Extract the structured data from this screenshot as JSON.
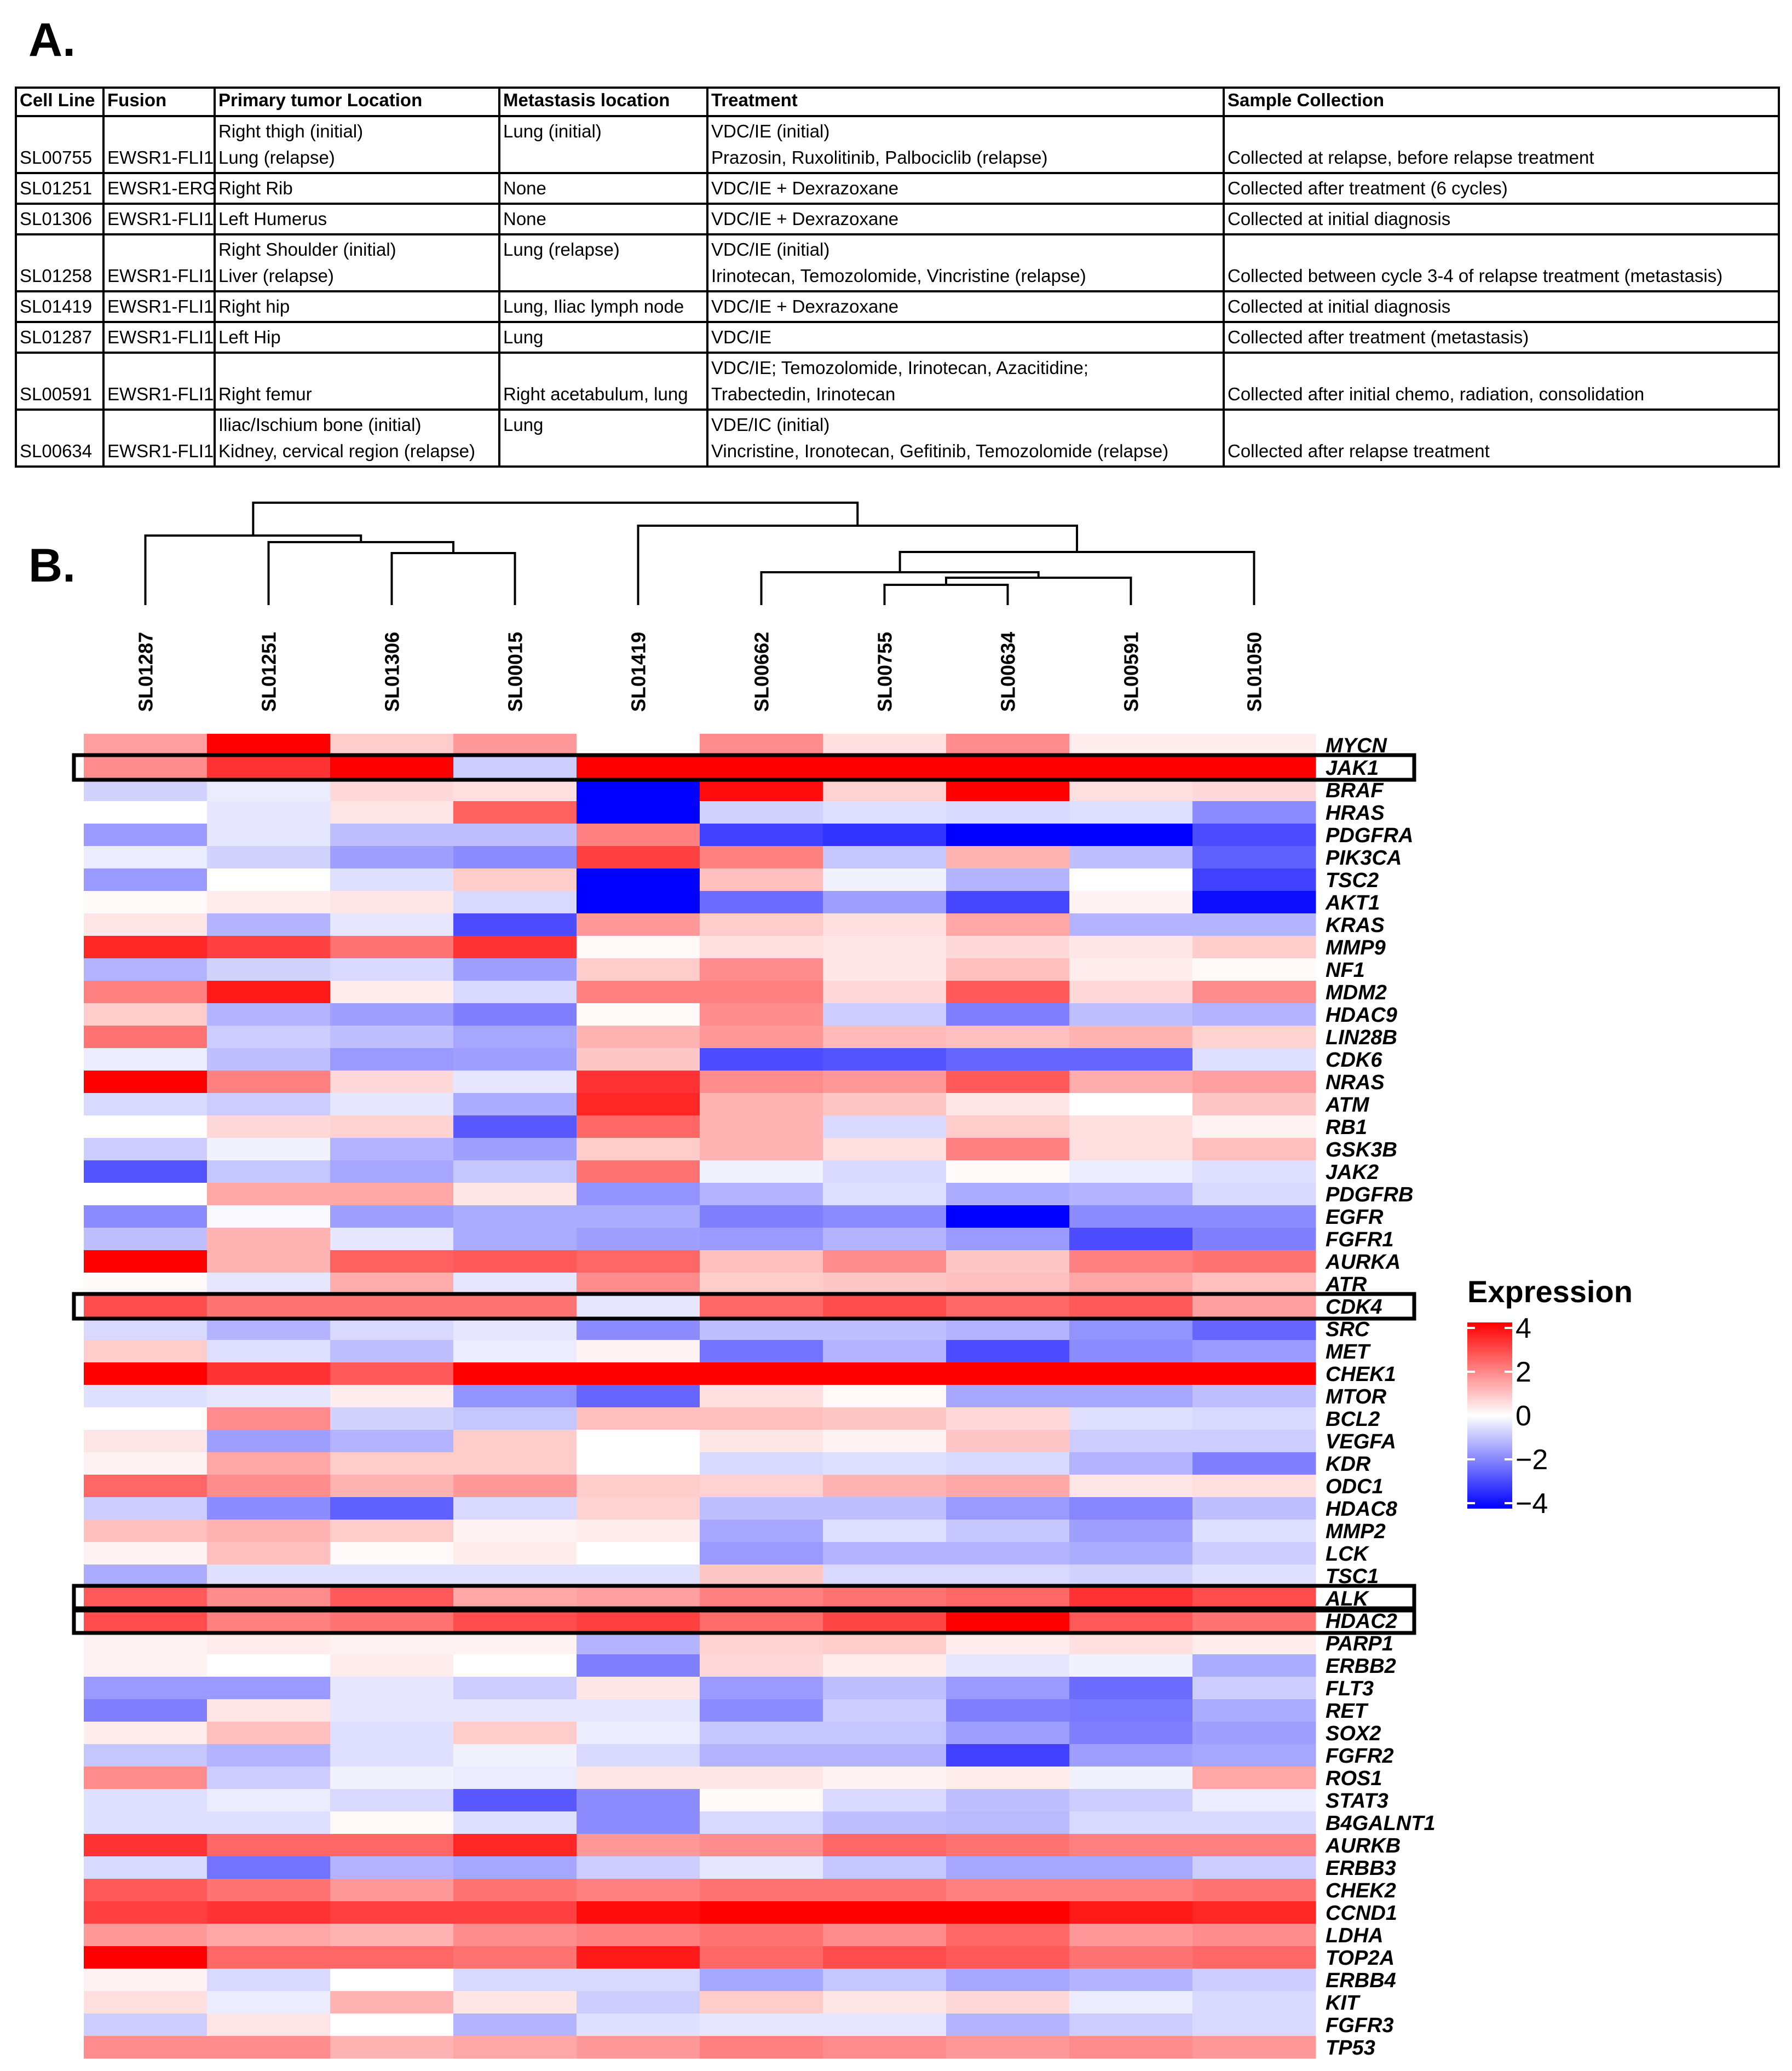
{
  "panel_a_label": "A.",
  "panel_b_label": "B.",
  "table": {
    "headers": [
      "Cell Line",
      "Fusion",
      "Primary tumor Location",
      "Metastasis location",
      "Treatment",
      "Sample Collection"
    ],
    "rows": [
      {
        "cells": [
          [
            "SL00755"
          ],
          [
            "EWSR1-FLI1"
          ],
          [
            "Right thigh (initial)",
            "Lung (relapse)"
          ],
          [
            "Lung (initial)"
          ],
          [
            "VDC/IE (initial)",
            "Prazosin, Ruxolitinib, Palbociclib (relapse)"
          ],
          [
            "Collected at relapse, before relapse treatment"
          ]
        ]
      },
      {
        "cells": [
          [
            "SL01251"
          ],
          [
            "EWSR1-ERG"
          ],
          [
            "Right Rib"
          ],
          [
            "None"
          ],
          [
            "VDC/IE + Dexrazoxane"
          ],
          [
            "Collected after treatment (6 cycles)"
          ]
        ]
      },
      {
        "cells": [
          [
            "SL01306"
          ],
          [
            "EWSR1-FLI1"
          ],
          [
            "Left Humerus"
          ],
          [
            "None"
          ],
          [
            "VDC/IE + Dexrazoxane"
          ],
          [
            "Collected at initial diagnosis"
          ]
        ]
      },
      {
        "cells": [
          [
            "SL01258"
          ],
          [
            "EWSR1-FLI1"
          ],
          [
            "Right Shoulder (initial)",
            "Liver (relapse)"
          ],
          [
            "Lung (relapse)"
          ],
          [
            "VDC/IE (initial)",
            "Irinotecan, Temozolomide, Vincristine (relapse)"
          ],
          [
            "Collected between cycle 3-4 of relapse treatment (metastasis)"
          ]
        ]
      },
      {
        "cells": [
          [
            "SL01419"
          ],
          [
            "EWSR1-FLI1"
          ],
          [
            "Right hip"
          ],
          [
            "Lung, Iliac lymph node"
          ],
          [
            "VDC/IE + Dexrazoxane"
          ],
          [
            "Collected at initial diagnosis"
          ]
        ]
      },
      {
        "cells": [
          [
            "SL01287"
          ],
          [
            "EWSR1-FLI1"
          ],
          [
            "Left Hip"
          ],
          [
            "Lung"
          ],
          [
            "VDC/IE"
          ],
          [
            "Collected after treatment (metastasis)"
          ]
        ]
      },
      {
        "cells": [
          [
            "SL00591"
          ],
          [
            "EWSR1-FLI1"
          ],
          [
            "Right femur"
          ],
          [
            "Right acetabulum, lung"
          ],
          [
            "VDC/IE; Temozolomide, Irinotecan, Azacitidine;",
            "Trabectedin, Irinotecan"
          ],
          [
            "Collected after initial chemo, radiation, consolidation"
          ]
        ]
      },
      {
        "cells": [
          [
            "SL00634"
          ],
          [
            "EWSR1-FLI1"
          ],
          [
            "Iliac/Ischium bone (initial)",
            "Kidney, cervical region (relapse)"
          ],
          [
            "Lung"
          ],
          [
            "VDE/IC (initial)",
            "Vincristine, Ironotecan, Gefitinib, Temozolomide (relapse)"
          ],
          [
            "Collected after relapse treatment"
          ]
        ]
      }
    ]
  },
  "chart_data": {
    "type": "heatmap",
    "title": "",
    "legend": {
      "title": "Expression",
      "ticks": [
        "4",
        "2",
        "0",
        "−2",
        "−4"
      ],
      "range": [
        -4,
        4
      ],
      "colors": {
        "low": "#0000ff",
        "mid": "#ffffff",
        "high": "#ff0000"
      },
      "placement": "right"
    },
    "columns": [
      "SL01287",
      "SL01251",
      "SL01306",
      "SL00015",
      "SL01419",
      "SL00662",
      "SL00755",
      "SL00634",
      "SL00591",
      "SL01050"
    ],
    "rows": [
      "MYCN",
      "JAK1",
      "BRAF",
      "HRAS",
      "PDGFRA",
      "PIK3CA",
      "TSC2",
      "AKT1",
      "KRAS",
      "MMP9",
      "NF1",
      "MDM2",
      "HDAC9",
      "LIN28B",
      "CDK6",
      "NRAS",
      "ATM",
      "RB1",
      "GSK3B",
      "JAK2",
      "PDGFRB",
      "EGFR",
      "FGFR1",
      "AURKA",
      "ATR",
      "CDK4",
      "SRC",
      "MET",
      "CHEK1",
      "MTOR",
      "BCL2",
      "VEGFA",
      "KDR",
      "ODC1",
      "HDAC8",
      "MMP2",
      "LCK",
      "TSC1",
      "ALK",
      "HDAC2",
      "PARP1",
      "ERBB2",
      "FLT3",
      "RET",
      "SOX2",
      "FGFR2",
      "ROS1",
      "STAT3",
      "B4GALNT1",
      "AURKB",
      "ERBB3",
      "CHEK2",
      "CCND1",
      "LDHA",
      "TOP2A",
      "ERBB4",
      "KIT",
      "FGFR3",
      "TP53"
    ],
    "values": [
      [
        1.5,
        4.0,
        0.8,
        1.6,
        0.0,
        1.8,
        0.5,
        1.8,
        0.3,
        0.3
      ],
      [
        1.8,
        3.2,
        4.0,
        -0.8,
        4.0,
        4.0,
        4.0,
        4.0,
        4.0,
        4.0
      ],
      [
        -0.7,
        -0.3,
        0.6,
        0.5,
        -4.0,
        3.8,
        0.7,
        4.0,
        0.5,
        0.6
      ],
      [
        0.0,
        -0.4,
        0.4,
        2.5,
        -4.0,
        -0.7,
        -0.5,
        -0.6,
        -0.5,
        -1.8
      ],
      [
        -1.6,
        -0.4,
        -1.0,
        -1.0,
        2.0,
        -3.0,
        -3.2,
        -4.0,
        -4.0,
        -2.8
      ],
      [
        -0.3,
        -0.7,
        -1.5,
        -1.8,
        3.0,
        2.0,
        -0.9,
        1.2,
        -1.0,
        -2.5
      ],
      [
        -1.6,
        0.0,
        -0.5,
        0.8,
        -4.0,
        1.0,
        -0.2,
        -1.2,
        0.0,
        -3.0
      ],
      [
        0.1,
        0.3,
        0.4,
        -0.6,
        -4.0,
        -2.3,
        -1.5,
        -2.9,
        0.2,
        -3.8
      ],
      [
        0.4,
        -1.2,
        -0.4,
        -2.8,
        1.6,
        0.8,
        0.5,
        1.4,
        -1.2,
        -1.2
      ],
      [
        3.4,
        3.0,
        2.2,
        3.2,
        0.1,
        0.5,
        0.4,
        0.6,
        0.4,
        0.8
      ],
      [
        -1.2,
        -0.7,
        -0.6,
        -1.5,
        0.8,
        1.8,
        0.4,
        1.0,
        0.3,
        0.1
      ],
      [
        2.0,
        3.6,
        0.3,
        -0.6,
        2.0,
        2.0,
        0.6,
        2.6,
        0.6,
        1.8
      ],
      [
        0.8,
        -1.2,
        -1.5,
        -2.0,
        0.1,
        1.8,
        -0.8,
        -2.0,
        -1.0,
        -1.2
      ],
      [
        2.2,
        -0.8,
        -1.0,
        -1.4,
        1.2,
        1.6,
        1.1,
        1.0,
        1.2,
        0.7
      ],
      [
        -0.3,
        -1.0,
        -1.6,
        -1.5,
        0.9,
        -2.8,
        -2.7,
        -2.4,
        -2.4,
        -0.5
      ],
      [
        4.0,
        2.0,
        0.6,
        -0.4,
        3.2,
        1.8,
        1.6,
        2.6,
        1.3,
        1.5
      ],
      [
        -0.6,
        -0.8,
        -0.4,
        -1.3,
        3.4,
        1.2,
        0.9,
        0.4,
        0.0,
        0.9
      ],
      [
        0.0,
        0.6,
        0.7,
        -2.6,
        2.4,
        1.2,
        -0.6,
        0.8,
        0.5,
        0.2
      ],
      [
        -0.8,
        -0.2,
        -1.2,
        -1.5,
        0.8,
        1.2,
        0.5,
        2.0,
        0.5,
        1.0
      ],
      [
        -2.7,
        -0.9,
        -1.4,
        -0.9,
        2.2,
        -0.2,
        -0.6,
        0.1,
        -0.3,
        -0.5
      ],
      [
        0.0,
        1.4,
        1.4,
        0.4,
        -1.7,
        -1.2,
        -0.5,
        -1.3,
        -1.2,
        -0.6
      ],
      [
        -1.8,
        -0.1,
        -1.5,
        -1.3,
        -1.3,
        -2.0,
        -1.8,
        -4.0,
        -1.8,
        -1.8
      ],
      [
        -1.0,
        1.2,
        -0.4,
        -1.3,
        -1.5,
        -1.6,
        -1.2,
        -1.6,
        -2.8,
        -2.0
      ],
      [
        4.0,
        1.2,
        2.5,
        2.6,
        2.4,
        1.0,
        1.8,
        0.9,
        2.0,
        2.2
      ],
      [
        0.1,
        -0.4,
        1.3,
        -0.4,
        1.8,
        0.8,
        0.9,
        1.0,
        1.4,
        1.0
      ],
      [
        2.8,
        2.2,
        2.2,
        2.2,
        -0.4,
        2.4,
        2.8,
        2.4,
        2.6,
        1.5
      ],
      [
        -0.6,
        -1.2,
        -0.6,
        -0.4,
        -1.8,
        -1.0,
        -1.0,
        -1.2,
        -1.7,
        -2.4
      ],
      [
        0.8,
        -0.5,
        -1.0,
        -0.3,
        0.2,
        -2.2,
        -1.2,
        -2.8,
        -1.8,
        -1.6
      ],
      [
        4.0,
        3.2,
        2.6,
        4.0,
        4.0,
        4.0,
        4.0,
        4.0,
        4.0,
        4.0
      ],
      [
        -0.5,
        -0.4,
        0.3,
        -1.7,
        -2.4,
        0.5,
        0.1,
        -1.4,
        -1.4,
        -1.0
      ],
      [
        0.0,
        1.8,
        -0.7,
        -0.9,
        1.0,
        1.0,
        0.9,
        0.6,
        -0.5,
        -0.6
      ],
      [
        0.4,
        -1.5,
        -1.2,
        0.8,
        0.0,
        0.4,
        0.2,
        0.9,
        -0.8,
        -0.8
      ],
      [
        0.2,
        1.4,
        0.8,
        0.8,
        0.0,
        -0.6,
        -0.5,
        -0.6,
        -1.2,
        -2.0
      ],
      [
        2.4,
        1.8,
        1.2,
        1.6,
        0.8,
        0.7,
        1.2,
        1.4,
        0.4,
        0.5
      ],
      [
        -0.8,
        -1.8,
        -2.5,
        -0.6,
        0.7,
        -1.0,
        -1.0,
        -1.6,
        -1.9,
        -1.0
      ],
      [
        1.0,
        1.2,
        0.8,
        0.2,
        0.3,
        -1.4,
        -0.5,
        -0.9,
        -1.5,
        -0.5
      ],
      [
        0.2,
        1.0,
        0.1,
        0.3,
        0.0,
        -1.6,
        -1.2,
        -1.2,
        -1.3,
        -0.8
      ],
      [
        -1.3,
        -0.5,
        -0.5,
        -0.5,
        -0.5,
        0.9,
        -0.6,
        -0.6,
        -0.7,
        -0.5
      ],
      [
        2.6,
        1.8,
        2.6,
        1.4,
        1.5,
        2.0,
        2.2,
        2.4,
        3.2,
        2.8
      ],
      [
        2.8,
        2.0,
        2.2,
        2.8,
        3.0,
        2.3,
        2.9,
        4.0,
        2.6,
        2.2
      ],
      [
        0.2,
        0.3,
        0.2,
        0.2,
        -1.2,
        0.7,
        0.8,
        0.3,
        0.5,
        0.3
      ],
      [
        0.2,
        0.0,
        0.3,
        0.0,
        -2.0,
        0.6,
        0.3,
        -0.4,
        -0.2,
        -1.3
      ],
      [
        -1.6,
        -1.6,
        -0.4,
        -0.8,
        0.4,
        -1.6,
        -1.0,
        -1.6,
        -2.3,
        -0.8
      ],
      [
        -2.0,
        0.4,
        -0.4,
        -0.4,
        -0.4,
        -1.8,
        -0.8,
        -2.0,
        -2.1,
        -1.3
      ],
      [
        0.3,
        1.0,
        -0.5,
        0.8,
        -0.3,
        -0.9,
        -0.9,
        -1.5,
        -2.0,
        -1.5
      ],
      [
        -0.9,
        -1.2,
        -0.5,
        -0.2,
        -0.6,
        -1.2,
        -1.2,
        -3.0,
        -1.5,
        -1.4
      ],
      [
        1.8,
        -0.8,
        -0.2,
        -0.3,
        0.4,
        0.4,
        0.2,
        0.3,
        -0.2,
        1.4
      ],
      [
        -0.5,
        -0.3,
        -0.6,
        -2.6,
        -1.8,
        0.1,
        -0.6,
        -1.0,
        -0.8,
        -0.3
      ],
      [
        -0.5,
        -0.5,
        0.1,
        -0.5,
        -1.8,
        -0.6,
        -1.0,
        -1.1,
        -0.6,
        -0.6
      ],
      [
        3.2,
        2.4,
        2.4,
        3.4,
        1.6,
        1.8,
        2.4,
        2.2,
        2.0,
        2.0
      ],
      [
        -0.6,
        -2.2,
        -1.2,
        -1.4,
        -0.8,
        -0.4,
        -0.9,
        -1.4,
        -1.4,
        -0.8
      ],
      [
        2.6,
        2.2,
        1.6,
        2.2,
        2.0,
        2.2,
        2.2,
        2.0,
        2.0,
        2.2
      ],
      [
        3.0,
        3.2,
        3.0,
        3.0,
        3.8,
        4.0,
        4.0,
        4.0,
        3.6,
        3.4
      ],
      [
        1.6,
        1.4,
        1.2,
        1.8,
        2.0,
        2.2,
        1.8,
        2.4,
        1.6,
        1.8
      ],
      [
        4.0,
        2.4,
        2.4,
        2.2,
        3.6,
        2.4,
        2.8,
        2.6,
        2.2,
        2.4
      ],
      [
        0.2,
        -0.6,
        0.0,
        -0.6,
        -0.6,
        -1.4,
        -0.9,
        -1.4,
        -1.2,
        -0.8
      ],
      [
        0.5,
        -0.3,
        1.2,
        0.4,
        -0.8,
        0.8,
        0.4,
        0.6,
        -0.3,
        -0.6
      ],
      [
        -0.8,
        0.4,
        0.0,
        -1.2,
        -0.5,
        -0.4,
        -0.4,
        -1.2,
        -0.8,
        -0.6
      ],
      [
        1.8,
        1.8,
        1.2,
        1.4,
        1.6,
        2.0,
        1.8,
        1.6,
        1.8,
        1.6
      ]
    ],
    "highlighted_rows": [
      "JAK1",
      "CDK4",
      "ALK",
      "HDAC2"
    ]
  }
}
